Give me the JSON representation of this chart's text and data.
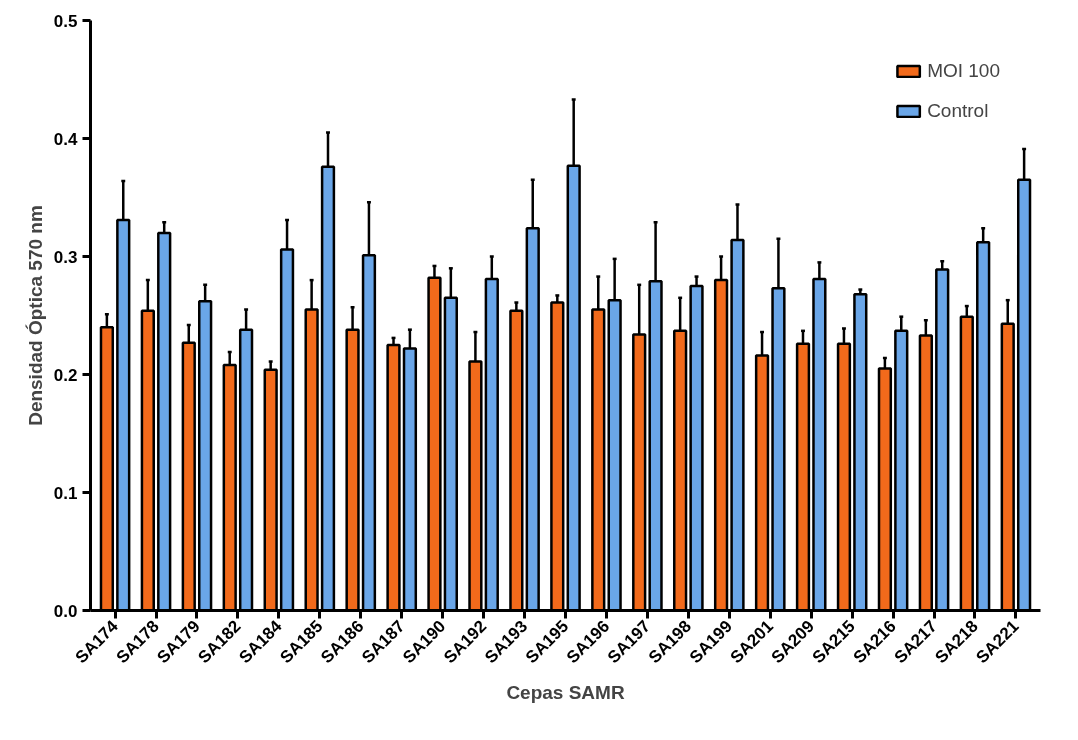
{
  "chart_data": {
    "type": "bar",
    "xlabel": "Cepas SAMR",
    "ylabel": "Densidad Óptica 570 nm",
    "categories": [
      "SA174",
      "SA178",
      "SA179",
      "SA182",
      "SA184",
      "SA185",
      "SA186",
      "SA187",
      "SA190",
      "SA192",
      "SA193",
      "SA195",
      "SA196",
      "SA197",
      "SA198",
      "SA199",
      "SA201",
      "SA209",
      "SA215",
      "SA216",
      "SA217",
      "SA218",
      "SA221"
    ],
    "series": [
      {
        "name": "MOI 100",
        "color": "#f26a1b",
        "values": [
          0.24,
          0.254,
          0.227,
          0.208,
          0.204,
          0.255,
          0.238,
          0.225,
          0.282,
          0.211,
          0.254,
          0.261,
          0.255,
          0.234,
          0.237,
          0.28,
          0.216,
          0.226,
          0.226,
          0.205,
          0.233,
          0.249,
          0.243
        ],
        "errors": [
          [
            0.24,
            0.251
          ],
          [
            0.254,
            0.28
          ],
          [
            0.227,
            0.242
          ],
          [
            0.208,
            0.219
          ],
          [
            0.204,
            0.211
          ],
          [
            0.255,
            0.28
          ],
          [
            0.238,
            0.257
          ],
          [
            0.225,
            0.231
          ],
          [
            0.282,
            0.292
          ],
          [
            0.211,
            0.236
          ],
          [
            0.254,
            0.261
          ],
          [
            0.261,
            0.267
          ],
          [
            0.255,
            0.283
          ],
          [
            0.234,
            0.276
          ],
          [
            0.237,
            0.265
          ],
          [
            0.28,
            0.3
          ],
          [
            0.216,
            0.236
          ],
          [
            0.226,
            0.237
          ],
          [
            0.226,
            0.239
          ],
          [
            0.205,
            0.214
          ],
          [
            0.233,
            0.246
          ],
          [
            0.249,
            0.258
          ],
          [
            0.243,
            0.263
          ]
        ]
      },
      {
        "name": "Control",
        "color": "#6aa6e8",
        "values": [
          0.331,
          0.32,
          0.262,
          0.238,
          0.306,
          0.376,
          0.301,
          0.222,
          0.265,
          0.281,
          0.324,
          0.377,
          0.263,
          0.279,
          0.275,
          0.314,
          0.273,
          0.281,
          0.268,
          0.237,
          0.289,
          0.312,
          0.365
        ],
        "errors": [
          [
            0.331,
            0.364
          ],
          [
            0.32,
            0.329
          ],
          [
            0.262,
            0.276
          ],
          [
            0.238,
            0.255
          ],
          [
            0.306,
            0.331
          ],
          [
            0.376,
            0.405
          ],
          [
            0.301,
            0.346
          ],
          [
            0.222,
            0.238
          ],
          [
            0.265,
            0.29
          ],
          [
            0.281,
            0.3
          ],
          [
            0.324,
            0.365
          ],
          [
            0.377,
            0.433
          ],
          [
            0.263,
            0.298
          ],
          [
            0.279,
            0.329
          ],
          [
            0.275,
            0.283
          ],
          [
            0.314,
            0.344
          ],
          [
            0.273,
            0.315
          ],
          [
            0.281,
            0.295
          ],
          [
            0.268,
            0.272
          ],
          [
            0.237,
            0.249
          ],
          [
            0.289,
            0.296
          ],
          [
            0.312,
            0.324
          ],
          [
            0.365,
            0.391
          ]
        ]
      }
    ],
    "ylim": [
      0,
      0.5
    ],
    "yticks": [
      {
        "value": 0,
        "label": "0.0"
      },
      0.1,
      0.2,
      0.3,
      0.4,
      0.5
    ],
    "grid": false,
    "legend": "top right"
  }
}
